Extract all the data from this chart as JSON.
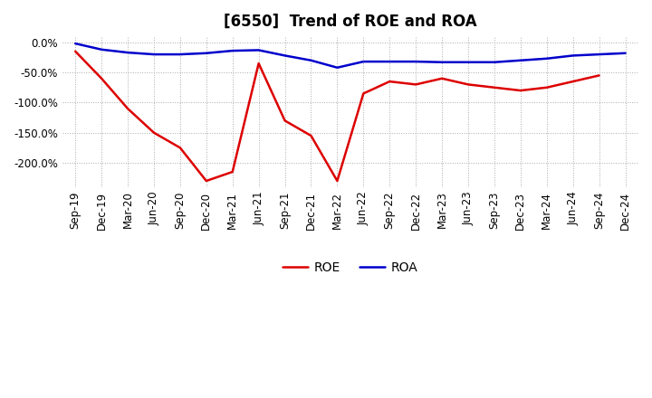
{
  "title": "[6550]  Trend of ROE and ROA",
  "x_labels": [
    "Sep-19",
    "Dec-19",
    "Mar-20",
    "Jun-20",
    "Sep-20",
    "Dec-20",
    "Mar-21",
    "Jun-21",
    "Sep-21",
    "Dec-21",
    "Mar-22",
    "Jun-22",
    "Sep-22",
    "Dec-22",
    "Mar-23",
    "Jun-23",
    "Sep-23",
    "Dec-23",
    "Mar-24",
    "Jun-24",
    "Sep-24",
    "Dec-24"
  ],
  "roe": [
    -15,
    -60,
    -110,
    -150,
    -175,
    -230,
    -215,
    -35,
    -130,
    -155,
    -230,
    -85,
    -65,
    -70,
    -60,
    -70,
    -75,
    -80,
    -75,
    -65,
    -55,
    null
  ],
  "roa": [
    -2,
    -12,
    -17,
    -20,
    -20,
    -18,
    -14,
    -13,
    -22,
    -30,
    -42,
    -32,
    -32,
    -32,
    -33,
    -33,
    -33,
    -30,
    -27,
    -22,
    -20,
    -18
  ],
  "roe_color": "#dd0000",
  "roa_color": "#0000cc",
  "ylim": [
    -240,
    10
  ],
  "yticks": [
    0.0,
    -50.0,
    -100.0,
    -150.0,
    -200.0
  ],
  "bg_color": "#ffffff",
  "grid_color": "#aaaaaa",
  "title_fontsize": 12,
  "axis_fontsize": 8.5,
  "legend_fontsize": 10
}
